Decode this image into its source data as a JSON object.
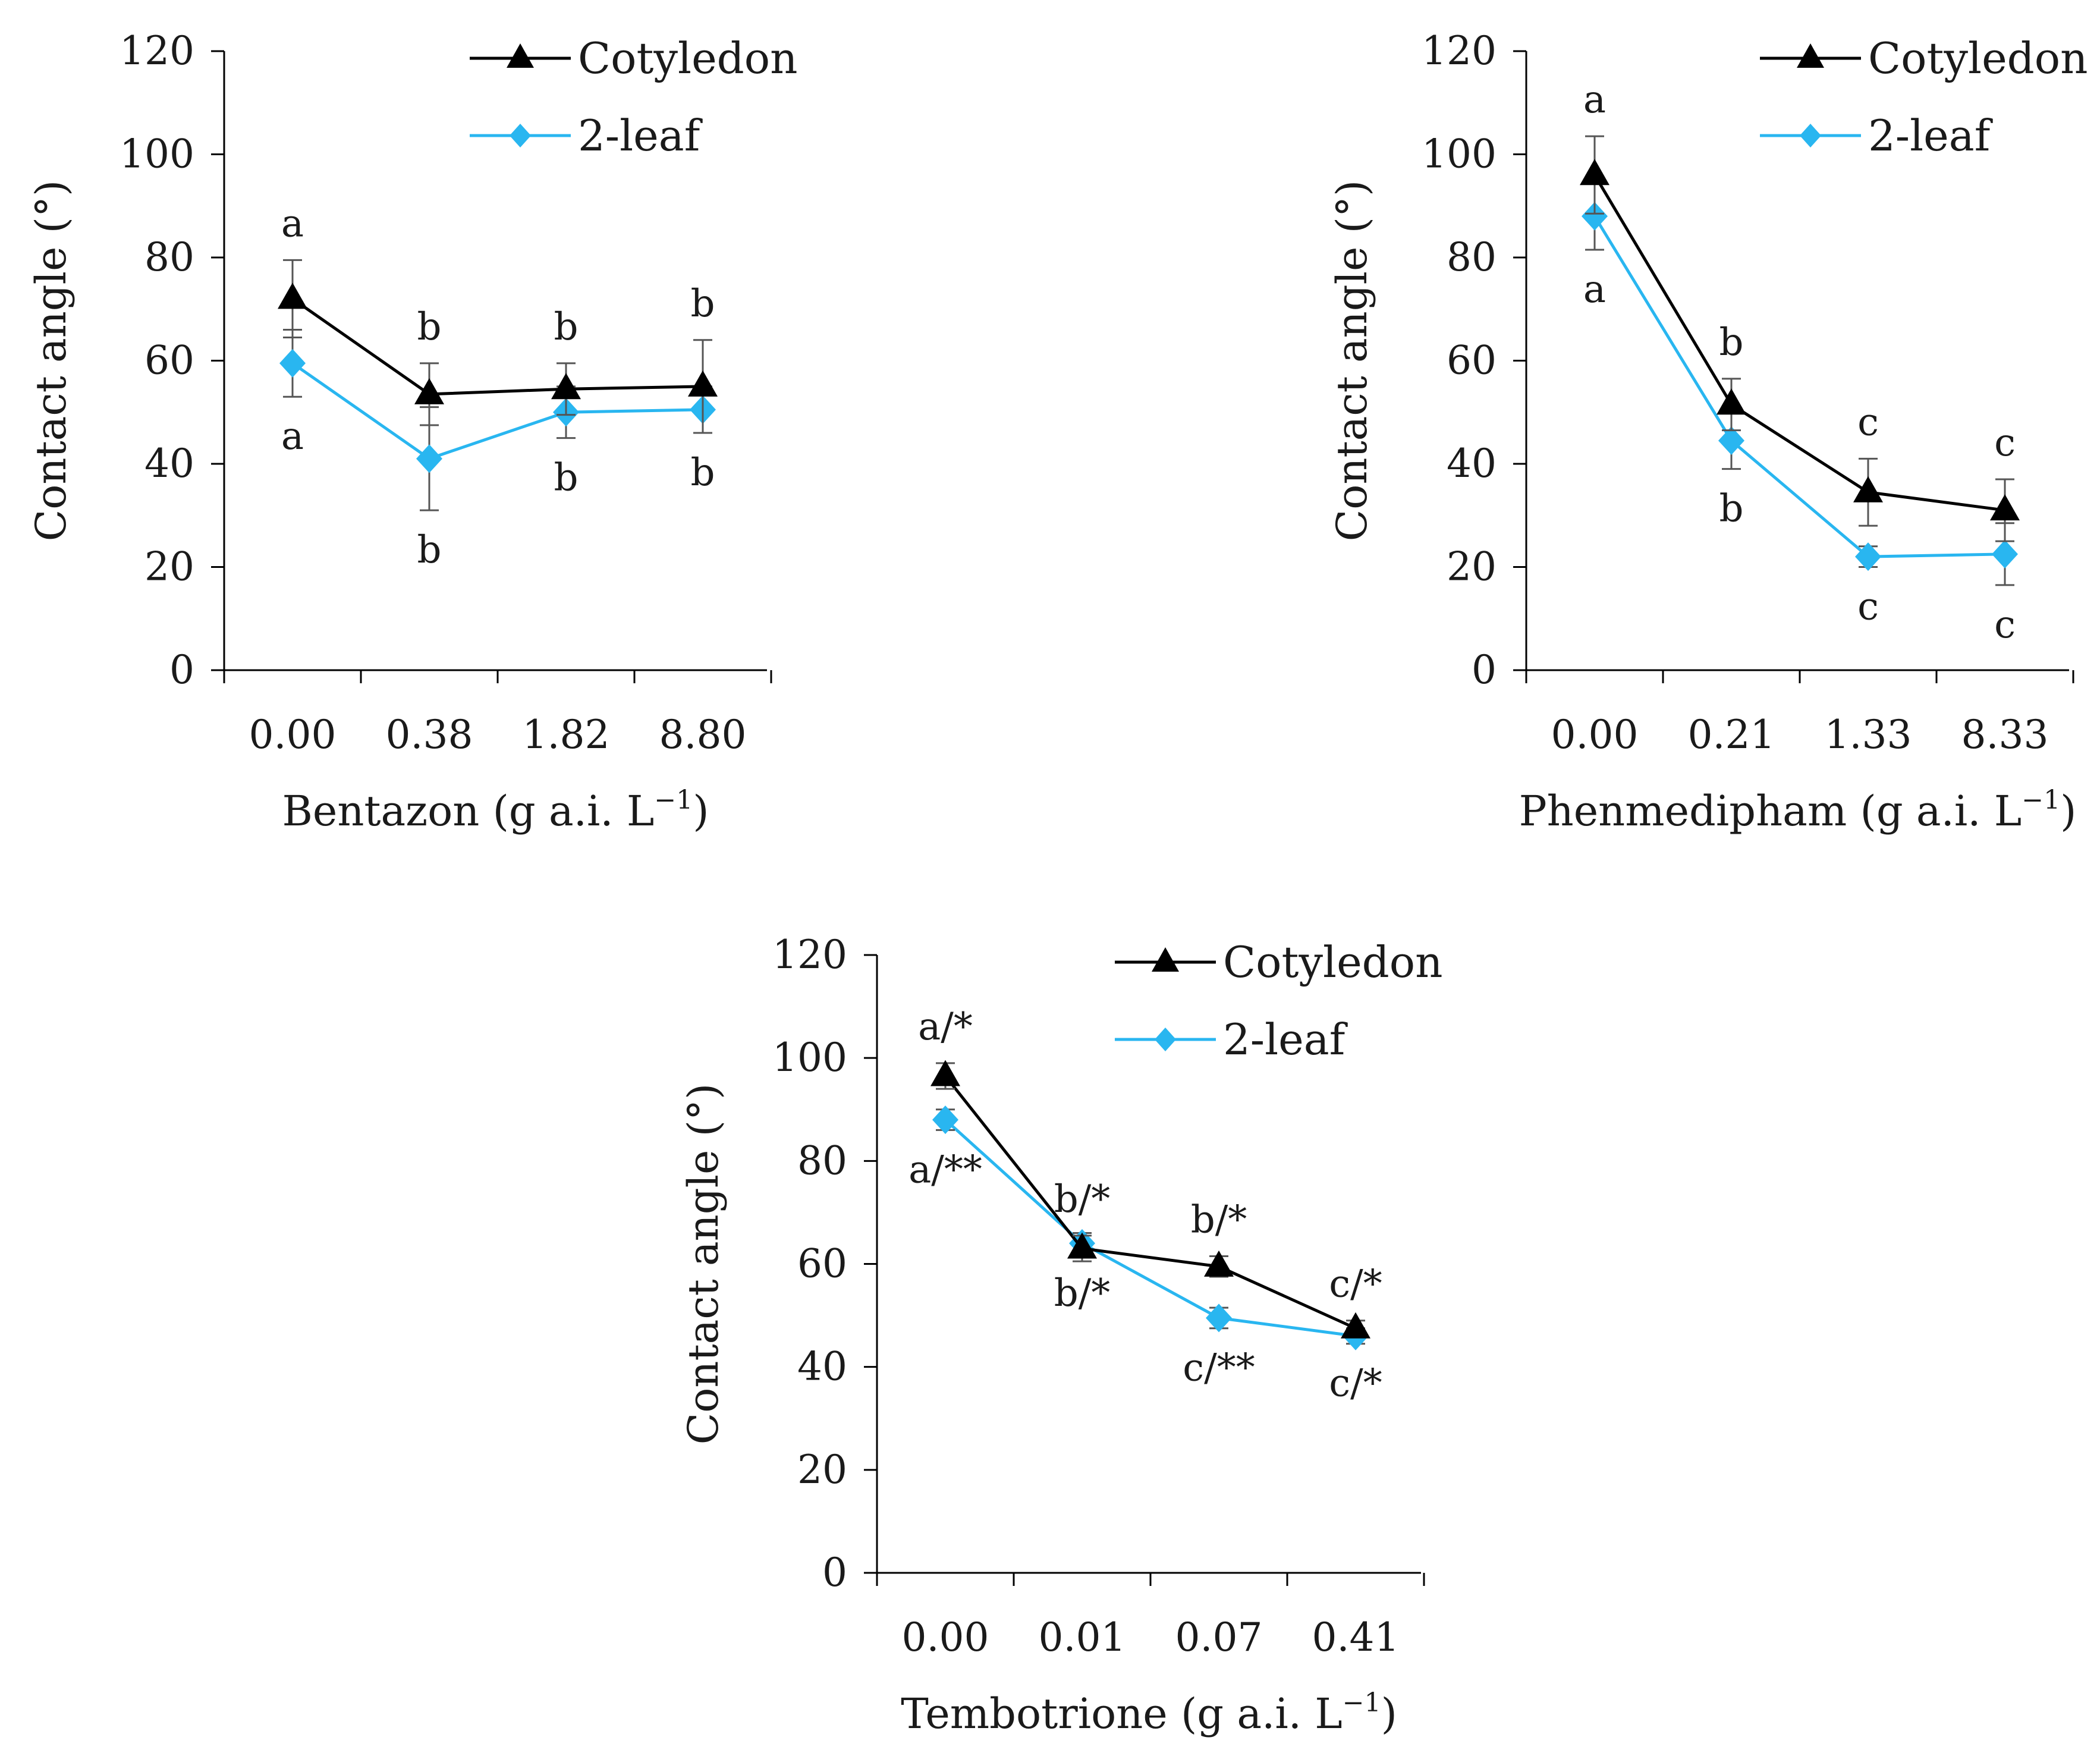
{
  "chart_data": [
    {
      "type": "line",
      "title": "",
      "xlabel": "Bentazon (g a.i. L",
      "xlabel_sup": "−1",
      "xlabel_suffix": ")",
      "ylabel": "Contact angle (°)",
      "ylim": [
        0,
        120
      ],
      "yticks": [
        "0",
        "20",
        "40",
        "60",
        "80",
        "100",
        "120"
      ],
      "categories": [
        "0.00",
        "0.38",
        "1.82",
        "8.80"
      ],
      "legend": [
        "Cotyledon",
        "2-leaf"
      ],
      "legend_position": "top-right",
      "series": [
        {
          "name": "Cotyledon",
          "marker": "triangle",
          "color": "#000000",
          "values": [
            72,
            53.5,
            54.5,
            55
          ],
          "errors": [
            7.5,
            6,
            5,
            9
          ],
          "labels": [
            "a",
            "b",
            "b",
            "b"
          ]
        },
        {
          "name": "2-leaf",
          "marker": "diamond",
          "color": "#29b6f0",
          "values": [
            59.5,
            41,
            50,
            50.5
          ],
          "errors": [
            6.5,
            10,
            5,
            4.5
          ],
          "labels": [
            "a",
            "b",
            "b",
            "b"
          ]
        }
      ]
    },
    {
      "type": "line",
      "title": "",
      "xlabel": "Phenmedipham (g a.i. L",
      "xlabel_sup": "−1",
      "xlabel_suffix": ")",
      "ylabel": "Contact angle (°)",
      "ylim": [
        0,
        120
      ],
      "yticks": [
        "0",
        "20",
        "40",
        "60",
        "80",
        "100",
        "120"
      ],
      "categories": [
        "0.00",
        "0.21",
        "1.33",
        "8.33"
      ],
      "legend": [
        "Cotyledon",
        "2-leaf"
      ],
      "legend_position": "top-right",
      "series": [
        {
          "name": "Cotyledon",
          "marker": "triangle",
          "color": "#000000",
          "values": [
            96,
            51.5,
            34.5,
            31
          ],
          "errors": [
            7.5,
            5,
            6.5,
            6
          ],
          "labels": [
            "a",
            "b",
            "c",
            "c"
          ]
        },
        {
          "name": "2-leaf",
          "marker": "diamond",
          "color": "#29b6f0",
          "values": [
            88,
            44.5,
            22,
            22.5
          ],
          "errors": [
            6.5,
            5.5,
            2,
            6
          ],
          "labels": [
            "a",
            "b",
            "c",
            "c"
          ]
        }
      ]
    },
    {
      "type": "line",
      "title": "",
      "xlabel": "Tembotrione (g a.i. L",
      "xlabel_sup": "−1",
      "xlabel_suffix": ")",
      "ylabel": "Contact angle (°)",
      "ylim": [
        0,
        120
      ],
      "yticks": [
        "0",
        "20",
        "40",
        "60",
        "80",
        "100",
        "120"
      ],
      "categories": [
        "0.00",
        "0.01",
        "0.07",
        "0.41"
      ],
      "legend": [
        "Cotyledon",
        "2-leaf"
      ],
      "legend_position": "top-right",
      "series": [
        {
          "name": "Cotyledon",
          "marker": "triangle",
          "color": "#000000",
          "values": [
            96.5,
            63,
            59.5,
            47.5
          ],
          "errors": [
            2.5,
            2.5,
            2,
            1.5
          ],
          "labels": [
            "a/*",
            "b/*",
            "b/*",
            "c/*"
          ]
        },
        {
          "name": "2-leaf",
          "marker": "diamond",
          "color": "#29b6f0",
          "values": [
            88,
            64,
            49.5,
            46
          ],
          "errors": [
            2,
            2,
            2,
            1.5
          ],
          "labels": [
            "a/**",
            "b/*",
            "c/**",
            "c/*"
          ]
        }
      ]
    }
  ]
}
